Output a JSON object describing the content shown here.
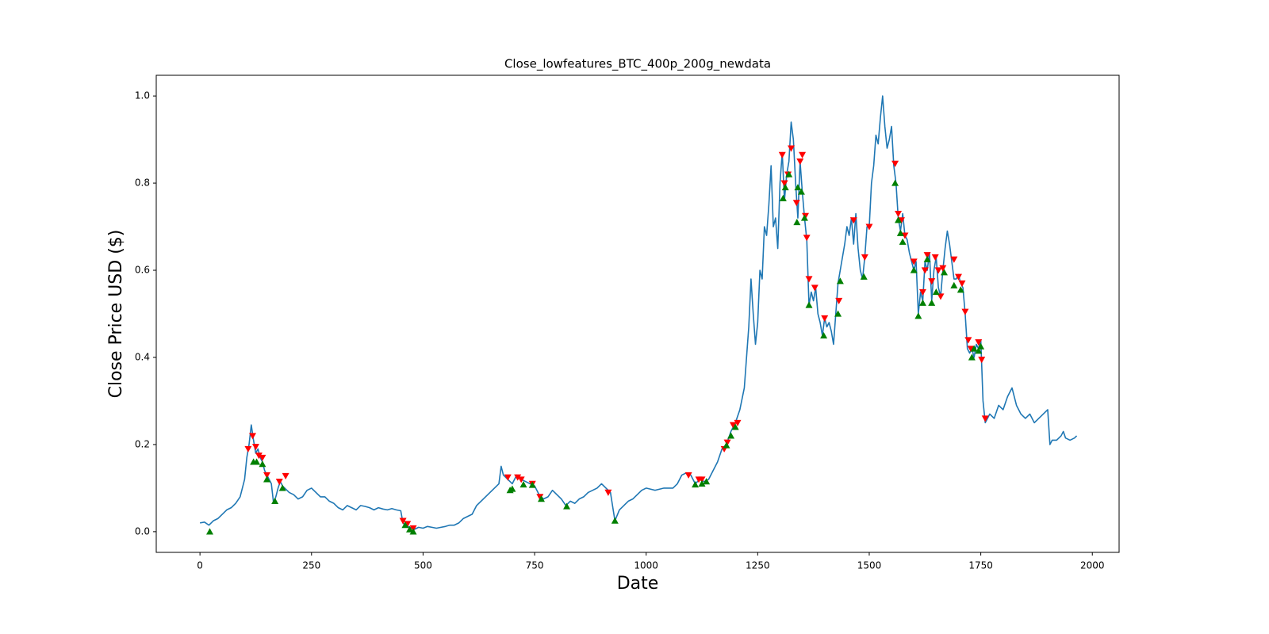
{
  "chart_data": {
    "type": "line",
    "title": "Close_lowfeatures_BTC_400p_200g_newdata",
    "x_label": "Date",
    "y_label": "Close Price USD ($)",
    "xlim": [
      -98,
      2060
    ],
    "ylim": [
      -0.0475,
      1.0475
    ],
    "xticks": [
      0,
      250,
      500,
      750,
      1000,
      1250,
      1500,
      1750,
      2000
    ],
    "yticks": [
      {
        "value": 0,
        "label": "0.0"
      },
      {
        "value": 0.2,
        "label": "0.2"
      },
      {
        "value": 0.4,
        "label": "0.4"
      },
      {
        "value": 0.6,
        "label": "0.6"
      },
      {
        "value": 0.8,
        "label": "0.8"
      },
      {
        "value": 1.0,
        "label": "1.0"
      }
    ],
    "grid": false,
    "series": [
      {
        "color": "#1f77b4",
        "marker": "none",
        "x": [
          0,
          10,
          20,
          30,
          40,
          50,
          60,
          70,
          80,
          90,
          100,
          105,
          110,
          115,
          120,
          125,
          130,
          135,
          140,
          145,
          150,
          155,
          160,
          165,
          170,
          175,
          180,
          185,
          190,
          200,
          210,
          220,
          230,
          240,
          250,
          260,
          270,
          280,
          290,
          300,
          310,
          320,
          330,
          340,
          350,
          360,
          370,
          380,
          390,
          400,
          410,
          420,
          430,
          440,
          450,
          455,
          460,
          470,
          480,
          490,
          500,
          510,
          520,
          530,
          540,
          550,
          560,
          570,
          580,
          590,
          600,
          610,
          620,
          630,
          640,
          650,
          660,
          670,
          675,
          680,
          690,
          700,
          710,
          720,
          730,
          740,
          750,
          760,
          770,
          780,
          790,
          800,
          810,
          820,
          830,
          840,
          850,
          860,
          870,
          880,
          890,
          900,
          910,
          920,
          930,
          940,
          950,
          960,
          970,
          980,
          990,
          1000,
          1020,
          1040,
          1060,
          1070,
          1080,
          1090,
          1100,
          1110,
          1120,
          1130,
          1140,
          1150,
          1160,
          1170,
          1180,
          1190,
          1200,
          1210,
          1220,
          1225,
          1230,
          1235,
          1240,
          1245,
          1250,
          1255,
          1260,
          1265,
          1270,
          1275,
          1280,
          1285,
          1290,
          1295,
          1300,
          1305,
          1310,
          1315,
          1320,
          1325,
          1330,
          1335,
          1340,
          1345,
          1350,
          1355,
          1360,
          1365,
          1370,
          1375,
          1380,
          1385,
          1390,
          1395,
          1400,
          1405,
          1410,
          1415,
          1420,
          1425,
          1430,
          1435,
          1440,
          1445,
          1450,
          1455,
          1460,
          1465,
          1470,
          1475,
          1480,
          1485,
          1490,
          1495,
          1500,
          1505,
          1510,
          1515,
          1520,
          1525,
          1530,
          1535,
          1540,
          1545,
          1550,
          1555,
          1560,
          1565,
          1570,
          1575,
          1580,
          1585,
          1590,
          1595,
          1600,
          1605,
          1610,
          1615,
          1620,
          1625,
          1630,
          1635,
          1640,
          1645,
          1650,
          1655,
          1660,
          1665,
          1670,
          1675,
          1680,
          1685,
          1690,
          1695,
          1700,
          1705,
          1710,
          1715,
          1720,
          1725,
          1730,
          1735,
          1740,
          1745,
          1750,
          1755,
          1760,
          1765,
          1770,
          1780,
          1790,
          1800,
          1810,
          1820,
          1830,
          1840,
          1850,
          1860,
          1870,
          1880,
          1890,
          1900,
          1905,
          1910,
          1920,
          1930,
          1935,
          1940,
          1950,
          1960,
          1965
        ],
        "values": [
          0.02,
          0.022,
          0.015,
          0.025,
          0.03,
          0.04,
          0.05,
          0.055,
          0.065,
          0.08,
          0.12,
          0.17,
          0.2,
          0.245,
          0.21,
          0.18,
          0.19,
          0.17,
          0.16,
          0.14,
          0.13,
          0.12,
          0.11,
          0.065,
          0.08,
          0.1,
          0.115,
          0.105,
          0.1,
          0.09,
          0.085,
          0.075,
          0.08,
          0.095,
          0.1,
          0.09,
          0.08,
          0.08,
          0.07,
          0.065,
          0.055,
          0.05,
          0.06,
          0.055,
          0.05,
          0.06,
          0.058,
          0.055,
          0.05,
          0.055,
          0.052,
          0.05,
          0.053,
          0.05,
          0.048,
          0.02,
          0.015,
          0.01,
          0.005,
          0.01,
          0.008,
          0.012,
          0.01,
          0.008,
          0.01,
          0.012,
          0.015,
          0.015,
          0.02,
          0.03,
          0.035,
          0.04,
          0.06,
          0.07,
          0.08,
          0.09,
          0.1,
          0.11,
          0.15,
          0.13,
          0.12,
          0.11,
          0.13,
          0.12,
          0.115,
          0.11,
          0.105,
          0.085,
          0.075,
          0.08,
          0.095,
          0.085,
          0.075,
          0.06,
          0.07,
          0.065,
          0.075,
          0.08,
          0.09,
          0.095,
          0.1,
          0.11,
          0.1,
          0.09,
          0.025,
          0.05,
          0.06,
          0.07,
          0.075,
          0.085,
          0.095,
          0.1,
          0.095,
          0.1,
          0.1,
          0.11,
          0.13,
          0.135,
          0.13,
          0.11,
          0.12,
          0.115,
          0.12,
          0.14,
          0.16,
          0.19,
          0.2,
          0.23,
          0.25,
          0.28,
          0.33,
          0.4,
          0.47,
          0.58,
          0.5,
          0.43,
          0.48,
          0.6,
          0.58,
          0.7,
          0.68,
          0.75,
          0.84,
          0.7,
          0.72,
          0.65,
          0.8,
          0.87,
          0.76,
          0.82,
          0.85,
          0.94,
          0.9,
          0.8,
          0.72,
          0.85,
          0.78,
          0.72,
          0.67,
          0.52,
          0.55,
          0.53,
          0.56,
          0.5,
          0.48,
          0.45,
          0.49,
          0.47,
          0.48,
          0.46,
          0.43,
          0.5,
          0.57,
          0.6,
          0.63,
          0.66,
          0.7,
          0.68,
          0.72,
          0.66,
          0.73,
          0.65,
          0.6,
          0.58,
          0.63,
          0.7,
          0.7,
          0.8,
          0.84,
          0.91,
          0.89,
          0.95,
          1.0,
          0.93,
          0.88,
          0.9,
          0.93,
          0.84,
          0.8,
          0.72,
          0.69,
          0.73,
          0.68,
          0.67,
          0.64,
          0.62,
          0.6,
          0.62,
          0.5,
          0.55,
          0.53,
          0.62,
          0.6,
          0.64,
          0.53,
          0.6,
          0.63,
          0.56,
          0.54,
          0.6,
          0.65,
          0.69,
          0.66,
          0.62,
          0.58,
          0.58,
          0.59,
          0.57,
          0.56,
          0.5,
          0.42,
          0.41,
          0.42,
          0.4,
          0.43,
          0.42,
          0.44,
          0.3,
          0.25,
          0.26,
          0.27,
          0.26,
          0.29,
          0.28,
          0.31,
          0.33,
          0.29,
          0.27,
          0.26,
          0.27,
          0.25,
          0.26,
          0.27,
          0.28,
          0.2,
          0.21,
          0.21,
          0.22,
          0.23,
          0.215,
          0.21,
          0.215,
          0.22
        ]
      },
      {
        "color": "#ff0000",
        "marker": "down",
        "x": [
          108,
          118,
          125,
          132,
          140,
          150,
          178,
          192,
          455,
          465,
          478,
          690,
          712,
          720,
          745,
          762,
          915,
          1095,
          1118,
          1125,
          1175,
          1182,
          1195,
          1205,
          1305,
          1310,
          1318,
          1325,
          1337,
          1345,
          1350,
          1357,
          1360,
          1365,
          1378,
          1400,
          1432,
          1465,
          1490,
          1500,
          1558,
          1565,
          1572,
          1580,
          1600,
          1620,
          1625,
          1630,
          1640,
          1648,
          1655,
          1660,
          1665,
          1690,
          1700,
          1708,
          1715,
          1722,
          1728,
          1745,
          1752,
          1760
        ],
        "values": [
          0.19,
          0.22,
          0.195,
          0.175,
          0.17,
          0.13,
          0.115,
          0.128,
          0.025,
          0.018,
          0.008,
          0.125,
          0.125,
          0.12,
          0.11,
          0.08,
          0.09,
          0.13,
          0.12,
          0.12,
          0.19,
          0.205,
          0.245,
          0.25,
          0.865,
          0.8,
          0.82,
          0.88,
          0.755,
          0.85,
          0.865,
          0.725,
          0.675,
          0.58,
          0.56,
          0.49,
          0.53,
          0.715,
          0.63,
          0.7,
          0.845,
          0.73,
          0.715,
          0.68,
          0.62,
          0.55,
          0.6,
          0.635,
          0.575,
          0.63,
          0.6,
          0.54,
          0.605,
          0.625,
          0.585,
          0.57,
          0.505,
          0.44,
          0.42,
          0.435,
          0.395,
          0.26
        ]
      },
      {
        "color": "#008000",
        "marker": "up",
        "x": [
          22,
          120,
          127,
          140,
          150,
          168,
          185,
          460,
          470,
          478,
          695,
          700,
          725,
          745,
          765,
          822,
          930,
          1110,
          1125,
          1135,
          1180,
          1190,
          1200,
          1307,
          1312,
          1320,
          1338,
          1340,
          1348,
          1355,
          1365,
          1398,
          1430,
          1435,
          1488,
          1558,
          1565,
          1570,
          1575,
          1600,
          1610,
          1620,
          1630,
          1640,
          1650,
          1668,
          1690,
          1705,
          1730,
          1735,
          1745,
          1750
        ],
        "values": [
          0.0,
          0.16,
          0.16,
          0.155,
          0.12,
          0.07,
          0.1,
          0.015,
          0.005,
          0.0,
          0.095,
          0.098,
          0.108,
          0.107,
          0.075,
          0.058,
          0.025,
          0.108,
          0.11,
          0.115,
          0.198,
          0.22,
          0.24,
          0.765,
          0.79,
          0.82,
          0.71,
          0.79,
          0.78,
          0.72,
          0.52,
          0.45,
          0.5,
          0.575,
          0.585,
          0.8,
          0.715,
          0.685,
          0.665,
          0.6,
          0.495,
          0.525,
          0.625,
          0.525,
          0.55,
          0.595,
          0.565,
          0.555,
          0.4,
          0.42,
          0.415,
          0.425
        ]
      }
    ]
  }
}
